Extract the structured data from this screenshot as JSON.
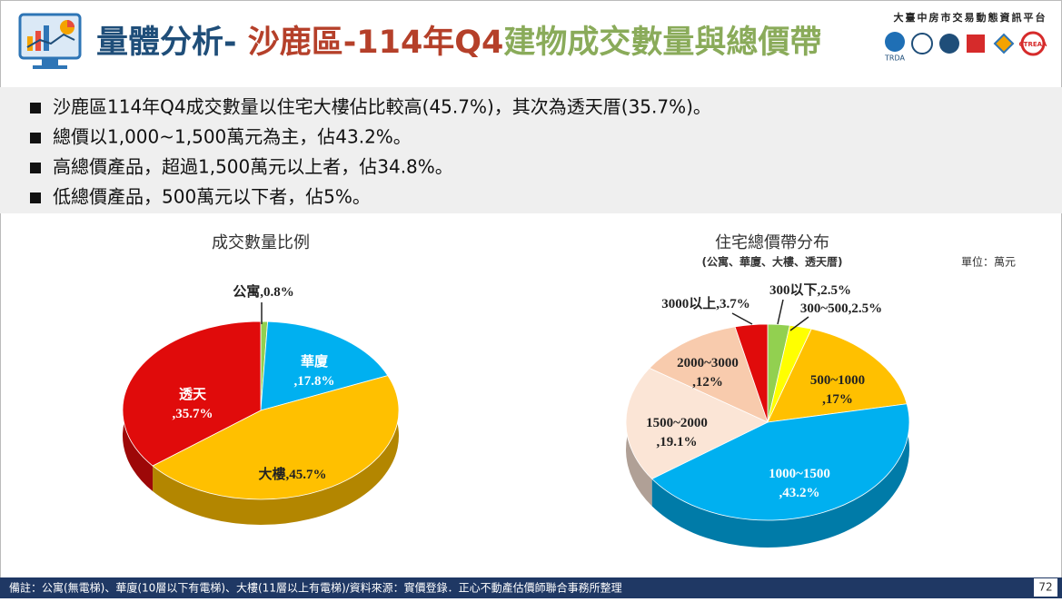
{
  "header": {
    "title": [
      "量體分析- ",
      "沙鹿區-114年Q4",
      "建物成交數量與總價帶"
    ],
    "platform": "大臺中房市交易動態資訊平台",
    "logos": [
      "TRDA",
      "CTREAA"
    ]
  },
  "bullets": [
    "沙鹿區114年Q4成交數量以住宅大樓佔比較高(45.7%)，其次為透天厝(35.7%)。",
    "總價以1,000~1,500萬元為主，佔43.2%。",
    "高總價產品，超過1,500萬元以上者，佔34.8%。",
    "低總價產品，500萬元以下者，佔5%。"
  ],
  "chart_data": [
    {
      "type": "pie",
      "title": "成交數量比例",
      "categories": [
        "公寓",
        "華廈",
        "大樓",
        "透天"
      ],
      "values": [
        0.8,
        17.8,
        45.7,
        35.7
      ],
      "value_labels": [
        ",0.8%",
        ",17.8%",
        ",45.7%",
        ",35.7%"
      ],
      "colors": [
        "#92d050",
        "#00b0f0",
        "#ffc000",
        "#e00b0b"
      ]
    },
    {
      "type": "pie",
      "title": "住宅總價帶分布",
      "subtitle": "(公寓、華廈、大樓、透天厝)",
      "note": "單位：萬元",
      "categories": [
        "300以下",
        "300~500",
        "500~1000",
        "1000~1500",
        "1500~2000",
        "2000~3000",
        "3000以上"
      ],
      "values": [
        2.5,
        2.5,
        17,
        43.2,
        19.1,
        12,
        3.7
      ],
      "value_labels": [
        ",2.5%",
        ",2.5%",
        ",17%",
        ",43.2%",
        ",19.1%",
        ",12%",
        ",3.7%"
      ],
      "colors": [
        "#92d050",
        "#ffff00",
        "#ffc000",
        "#00b0f0",
        "#fbe5d6",
        "#f8cbad",
        "#e00b0b"
      ]
    }
  ],
  "footer": {
    "note": "備註：公寓(無電梯)、華廈(10層以下有電梯)、大樓(11層以上有電梯)/資料來源：實價登錄．正心不動產估價師聯合事務所整理",
    "page": "72"
  }
}
